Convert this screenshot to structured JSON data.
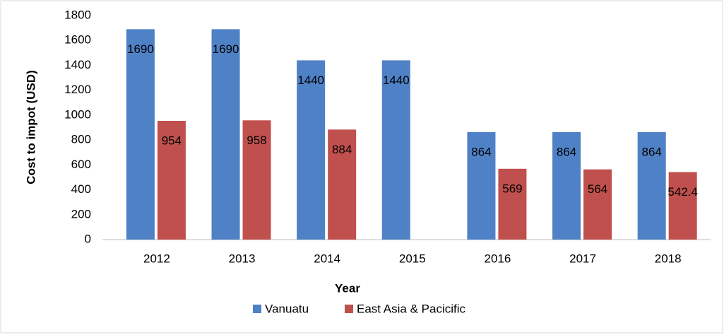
{
  "chart_data": {
    "type": "bar",
    "y_label": "Cost to impot (USD)",
    "x_label": "Year",
    "categories": [
      "2012",
      "2013",
      "2014",
      "2015",
      "2016",
      "2017",
      "2018"
    ],
    "series": [
      {
        "name": "Vanuatu",
        "color": "#4f81c6",
        "values": [
          1690,
          1690,
          1440,
          1440,
          864,
          864,
          864
        ]
      },
      {
        "name": "East Asia & Pacicific",
        "color": "#c0504d",
        "values": [
          954,
          958,
          884,
          null,
          569,
          564,
          542.4
        ]
      }
    ],
    "ylim": [
      0,
      1800
    ],
    "yticks": [
      0,
      200,
      400,
      600,
      800,
      1000,
      1200,
      1400,
      1600,
      1800
    ],
    "grid": false,
    "legend": "bottom",
    "data_labels": true
  }
}
